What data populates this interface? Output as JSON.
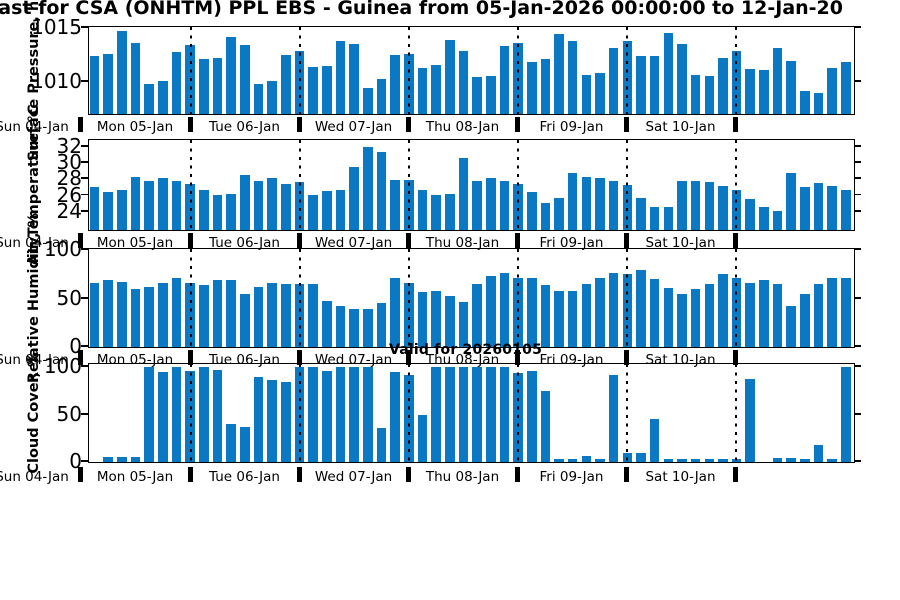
{
  "title": "cast for CSA (ONHTM) PPL EBS  - Guinea from 05-Jan-2026 00:00:00 to 12-Jan-20",
  "valid_label": "Valid for 20260105",
  "bar_color": "#0a78c2",
  "x_axis": {
    "pre_label": "Sun 04-Jan",
    "day_labels": [
      "Mon 05-Jan",
      "Tue 06-Jan",
      "Wed 07-Jan",
      "Thu 08-Jan",
      "Fri 09-Jan",
      "Sat 10-Jan"
    ],
    "bars_per_day": 8
  },
  "chart_data": [
    {
      "type": "bar",
      "id": "pressure",
      "ylabel": "Surface Pressure, hPa",
      "ylim": [
        1007,
        1015
      ],
      "yticks": [
        1010,
        1015
      ],
      "grid": "dotted-day-separators",
      "values": [
        1012.4,
        1012.6,
        1014.7,
        1013.6,
        1009.8,
        1010.1,
        1012.8,
        1013.4,
        1012.1,
        1012.2,
        1014.2,
        1013.4,
        1009.8,
        1010.1,
        1012.5,
        1012.9,
        1011.4,
        1011.5,
        1013.8,
        1013.5,
        1009.4,
        1010.3,
        1012.5,
        1012.6,
        1011.3,
        1011.6,
        1013.9,
        1012.9,
        1010.4,
        1010.5,
        1013.3,
        1013.6,
        1011.8,
        1012.1,
        1014.4,
        1013.8,
        1010.6,
        1010.8,
        1013.1,
        1013.8,
        1012.4,
        1012.4,
        1014.5,
        1013.5,
        1010.6,
        1010.5,
        1012.2,
        1012.9,
        1011.2,
        1011.1,
        1013.1,
        1011.9,
        1009.1,
        1009.0,
        1011.3,
        1011.8
      ]
    },
    {
      "type": "bar",
      "id": "temperature",
      "ylabel": "Air Temperature, °C",
      "ylim": [
        21.7,
        32.7
      ],
      "yticks": [
        24,
        26,
        28,
        30,
        32
      ],
      "grid": "dotted-day-separators",
      "values": [
        27.0,
        26.4,
        26.7,
        28.2,
        27.8,
        28.1,
        27.8,
        27.4,
        26.7,
        26.0,
        26.1,
        28.5,
        27.8,
        28.1,
        27.4,
        27.6,
        26.0,
        26.5,
        26.7,
        29.5,
        31.9,
        31.3,
        27.9,
        27.9,
        26.7,
        26.0,
        26.2,
        30.6,
        27.8,
        28.1,
        27.7,
        27.4,
        26.4,
        25.0,
        25.6,
        28.8,
        28.3,
        28.1,
        27.7,
        27.3,
        25.7,
        24.6,
        24.6,
        27.8,
        27.7,
        27.6,
        27.1,
        26.6,
        25.5,
        24.5,
        24.1,
        28.8,
        27.0,
        27.5,
        27.1,
        26.6
      ]
    },
    {
      "type": "bar",
      "id": "humidity",
      "ylabel": "Relative Humidity, %",
      "ylim": [
        0,
        100
      ],
      "yticks": [
        0,
        50,
        100
      ],
      "grid": "dotted-day-separators",
      "values": [
        66,
        69,
        67,
        60,
        62,
        66,
        71,
        66,
        64,
        69,
        69,
        55,
        62,
        66,
        65,
        65,
        65,
        47,
        42,
        39,
        39,
        45,
        71,
        66,
        57,
        58,
        53,
        46,
        65,
        73,
        76,
        71,
        71,
        64,
        58,
        58,
        65,
        71,
        76,
        75,
        79,
        70,
        61,
        55,
        60,
        65,
        75,
        71,
        66,
        69,
        65,
        42,
        55,
        65,
        71,
        71
      ]
    },
    {
      "type": "bar",
      "id": "cloud-cover",
      "ylabel": "Cloud Cover, %",
      "ylim": [
        0,
        102
      ],
      "yticks": [
        0,
        50,
        100
      ],
      "grid": "dotted-day-separators",
      "values": [
        0,
        5,
        5,
        5,
        100,
        95,
        100,
        96,
        100,
        97,
        40,
        37,
        89,
        86,
        84,
        100,
        100,
        96,
        100,
        100,
        100,
        36,
        95,
        92,
        49,
        100,
        100,
        100,
        100,
        100,
        100,
        94,
        96,
        75,
        3,
        3,
        6,
        3,
        92,
        10,
        9,
        45,
        3,
        3,
        3,
        3,
        3,
        3,
        87,
        0,
        4,
        4,
        3,
        18,
        3,
        100
      ]
    }
  ]
}
